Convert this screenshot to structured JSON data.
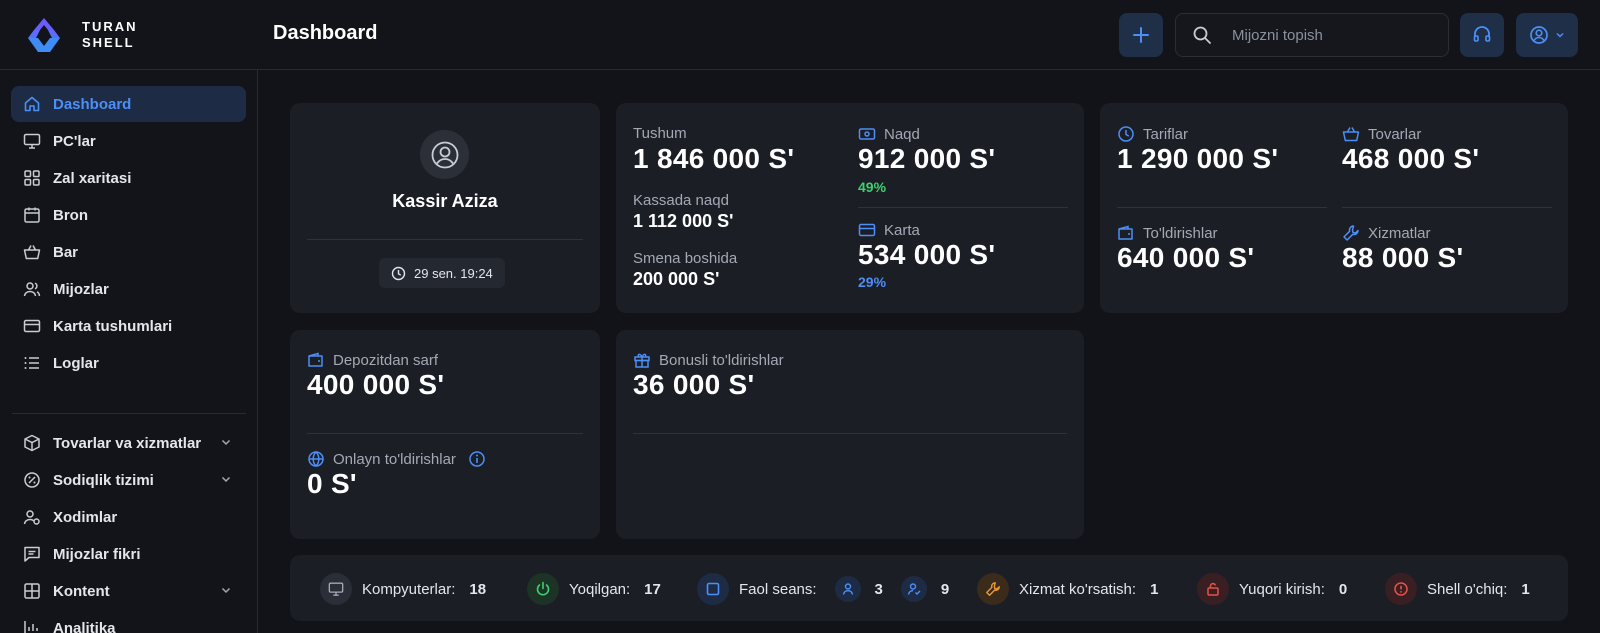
{
  "brand": {
    "line1": "TURAN",
    "line2": "SHELL"
  },
  "header": {
    "title": "Dashboard",
    "search_placeholder": "Mijozni topish"
  },
  "sidebar": {
    "items": [
      {
        "label": "Dashboard",
        "icon": "home-icon",
        "active": true
      },
      {
        "label": "PC'lar",
        "icon": "monitor-icon"
      },
      {
        "label": "Zal xaritasi",
        "icon": "grid-icon"
      },
      {
        "label": "Bron",
        "icon": "calendar-icon"
      },
      {
        "label": "Bar",
        "icon": "basket-icon"
      },
      {
        "label": "Mijozlar",
        "icon": "users-icon"
      },
      {
        "label": "Karta tushumlari",
        "icon": "card-icon"
      },
      {
        "label": "Loglar",
        "icon": "list-icon"
      }
    ],
    "groups": [
      {
        "label": "Tovarlar va xizmatlar",
        "icon": "box-icon",
        "expandable": true
      },
      {
        "label": "Sodiqlik tizimi",
        "icon": "loyalty-icon",
        "expandable": true
      },
      {
        "label": "Xodimlar",
        "icon": "staff-icon"
      },
      {
        "label": "Mijozlar fikri",
        "icon": "feedback-icon"
      },
      {
        "label": "Kontent",
        "icon": "content-icon",
        "expandable": true
      },
      {
        "label": "Analitika",
        "icon": "chart-icon"
      }
    ]
  },
  "profile": {
    "name": "Kassir Aziza",
    "shift_time": "29 sen. 19:24"
  },
  "revenue": {
    "total_label": "Tushum",
    "total_value": "1 846 000 S'",
    "cash_in_register_label": "Kassada naqd",
    "cash_in_register_value": "1 112 000 S'",
    "shift_start_label": "Smena boshida",
    "shift_start_value": "200 000 S'",
    "cash_label": "Naqd",
    "cash_value": "912 000 S'",
    "cash_percent": "49%",
    "card_label": "Karta",
    "card_value": "534 000 S'",
    "card_percent": "29%"
  },
  "categories": {
    "tariffs_label": "Tariflar",
    "tariffs_value": "1 290 000 S'",
    "goods_label": "Tovarlar",
    "goods_value": "468 000 S'",
    "topups_label": "To'ldirishlar",
    "topups_value": "640 000 S'",
    "services_label": "Xizmatlar",
    "services_value": "88 000 S'"
  },
  "deposit": {
    "spend_label": "Depozitdan sarf",
    "spend_value": "400 000 S'",
    "online_label": "Onlayn to'ldirishlar",
    "online_value": "0 S'"
  },
  "bonus": {
    "label": "Bonusli to'ldirishlar",
    "value": "36 000 S'"
  },
  "status_bar": {
    "computers_label": "Kompyuterlar:",
    "computers_value": "18",
    "on_label": "Yoqilgan:",
    "on_value": "17",
    "active_sessions_label": "Faol seans:",
    "active_users_value": "3",
    "active_guests_value": "9",
    "maintenance_label": "Xizmat ko'rsatish:",
    "maintenance_value": "1",
    "elevated_label": "Yuqori kirish:",
    "elevated_value": "0",
    "shell_off_label": "Shell o'chiq:",
    "shell_off_value": "1"
  },
  "colors": {
    "accent": "#4d8ef7",
    "green": "#3ecf6e",
    "orange": "#e8963a",
    "red": "#e5534b",
    "bg": "#111318",
    "card": "#1b1e25"
  }
}
